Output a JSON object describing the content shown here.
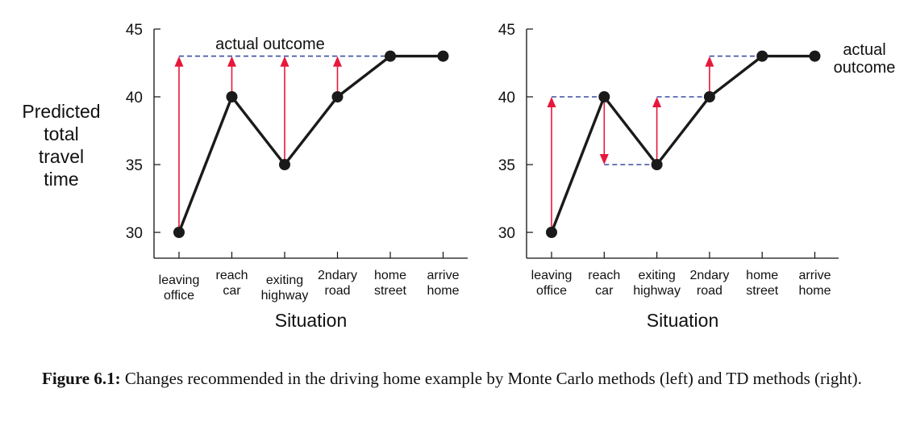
{
  "chart_data": [
    {
      "type": "line",
      "panel": "left",
      "ylabel": [
        "Predicted",
        "total",
        "travel",
        "time"
      ],
      "xlabel": "Situation",
      "categories": [
        [
          "leaving",
          "office"
        ],
        [
          "reach",
          "car"
        ],
        [
          "exiting",
          "highway"
        ],
        [
          "2ndary",
          "road"
        ],
        [
          "home",
          "street"
        ],
        [
          "arrive",
          "home"
        ]
      ],
      "values": [
        30,
        40,
        35,
        40,
        43,
        43
      ],
      "yticks": [
        30,
        35,
        40,
        45
      ],
      "ylim": [
        28,
        45
      ],
      "target_line": {
        "label": [
          "actual outcome"
        ],
        "segments": [
          {
            "from": 0,
            "to": 5,
            "y": 43
          }
        ]
      },
      "arrows": [
        {
          "at": 0,
          "from": 30,
          "to": 43
        },
        {
          "at": 1,
          "from": 40,
          "to": 43
        },
        {
          "at": 2,
          "from": 35,
          "to": 43
        },
        {
          "at": 3,
          "from": 40,
          "to": 43
        }
      ],
      "colors": {
        "line": "#1a1a1a",
        "arrow": "#e8173c",
        "dash": "#3a4fa3"
      }
    },
    {
      "type": "line",
      "panel": "right",
      "xlabel": "Situation",
      "categories": [
        [
          "leaving",
          "office"
        ],
        [
          "reach",
          "car"
        ],
        [
          "exiting",
          "highway"
        ],
        [
          "2ndary",
          "road"
        ],
        [
          "home",
          "street"
        ],
        [
          "arrive",
          "home"
        ]
      ],
      "values": [
        30,
        40,
        35,
        40,
        43,
        43
      ],
      "yticks": [
        30,
        35,
        40,
        45
      ],
      "ylim": [
        28,
        45
      ],
      "target_line": {
        "label": [
          "actual",
          "outcome"
        ],
        "segments": [
          {
            "from": 0,
            "to": 1,
            "y": 40
          },
          {
            "from": 1,
            "to": 2,
            "y": 35
          },
          {
            "from": 2,
            "to": 3,
            "y": 40
          },
          {
            "from": 3,
            "to": 5,
            "y": 43
          }
        ]
      },
      "arrows": [
        {
          "at": 0,
          "from": 30,
          "to": 40
        },
        {
          "at": 1,
          "from": 40,
          "to": 35
        },
        {
          "at": 2,
          "from": 35,
          "to": 40
        },
        {
          "at": 3,
          "from": 40,
          "to": 43
        }
      ],
      "colors": {
        "line": "#1a1a1a",
        "arrow": "#e8173c",
        "dash": "#3a4fa3"
      }
    }
  ],
  "caption": {
    "label": "Figure 6.1:",
    "text": " Changes recommended in the driving home example by Monte Carlo methods (left) and TD methods (right)."
  }
}
